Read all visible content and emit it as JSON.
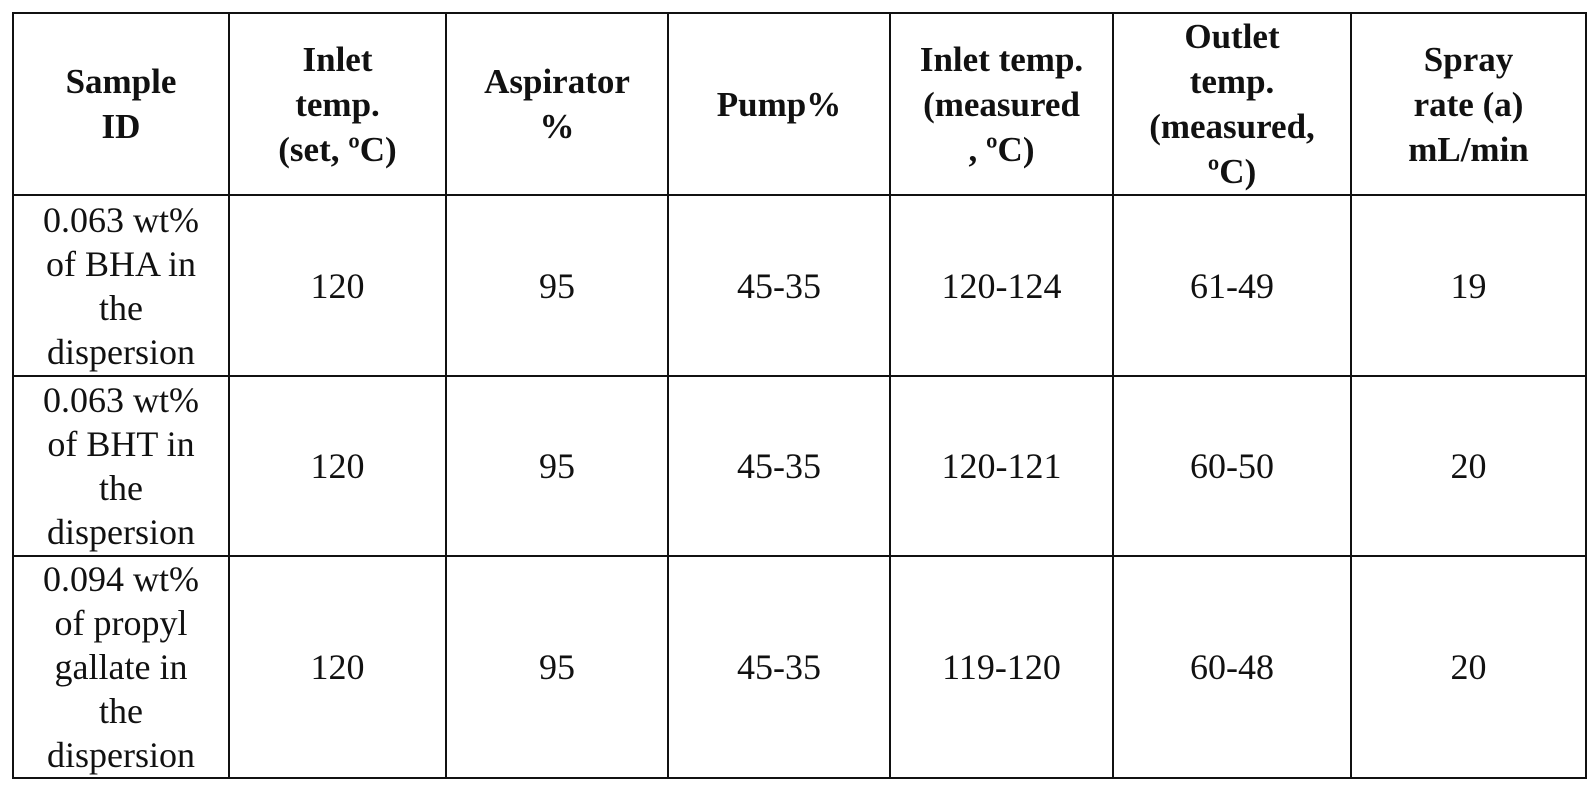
{
  "table": {
    "headers": [
      [
        "Sample",
        "ID"
      ],
      [
        "Inlet",
        "temp.",
        "(set, ºC)"
      ],
      [
        "Aspirator",
        "%"
      ],
      [
        "Pump%"
      ],
      [
        "Inlet temp.",
        "(measured",
        ", ºC)"
      ],
      [
        "Outlet",
        "temp.",
        "(measured,",
        "ºC)"
      ],
      [
        "Spray",
        "rate (a)",
        "mL/min"
      ]
    ],
    "rows": [
      {
        "sample": [
          "0.063 wt%",
          "of BHA in",
          "the",
          "dispersion"
        ],
        "inlet_set": "120",
        "aspirator": "95",
        "pump": "45-35",
        "inlet_measured": "120-124",
        "outlet_measured": "61-49",
        "spray_rate": "19"
      },
      {
        "sample": [
          "0.063 wt%",
          "of BHT in",
          "the",
          "dispersion"
        ],
        "inlet_set": "120",
        "aspirator": "95",
        "pump": "45-35",
        "inlet_measured": "120-121",
        "outlet_measured": "60-50",
        "spray_rate": "20"
      },
      {
        "sample": [
          "0.094 wt%",
          "of propyl",
          "gallate in",
          "the",
          "dispersion"
        ],
        "inlet_set": "120",
        "aspirator": "95",
        "pump": "45-35",
        "inlet_measured": "119-120",
        "outlet_measured": "60-48",
        "spray_rate": "20"
      }
    ]
  }
}
